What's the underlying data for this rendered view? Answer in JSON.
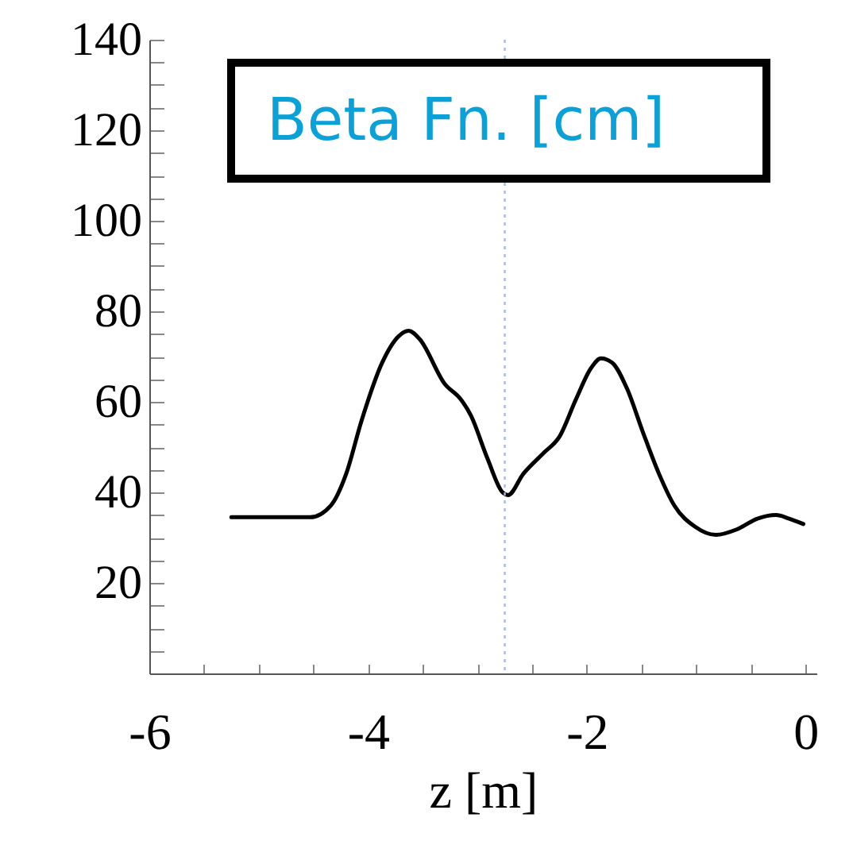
{
  "chart_data": {
    "type": "line",
    "title": "Beta Fn. [cm]",
    "xlabel": "z [m]",
    "x": [
      -5.25,
      -4.53,
      -4.34,
      -4.2,
      -4.06,
      -3.87,
      -3.72,
      -3.63,
      -3.53,
      -3.3,
      -3.15,
      -3.06,
      -2.91,
      -2.77,
      -2.72,
      -2.58,
      -2.39,
      -2.25,
      -2.1,
      -1.96,
      -1.87,
      -1.77,
      -1.63,
      -1.49,
      -1.34,
      -1.2,
      -1.01,
      -0.82,
      -0.63,
      -0.44,
      -0.27,
      -0.15,
      -0.02
    ],
    "series": [
      {
        "color": "#000000",
        "values": [
          34.5,
          34.5,
          37.1,
          44.1,
          55.8,
          68.7,
          74.5,
          75.7,
          73.9,
          64.0,
          60.5,
          57.0,
          47.6,
          40.0,
          39.4,
          44.1,
          48.8,
          52.3,
          60.5,
          67.5,
          69.6,
          68.7,
          62.8,
          53.5,
          44.1,
          37.1,
          32.4,
          30.6,
          31.8,
          34.2,
          35.0,
          34.2,
          33.0
        ]
      }
    ],
    "xlim": [
      -6,
      0.1
    ],
    "ylim": [
      0,
      140
    ],
    "xticks": [
      -6,
      {
        "value": -5.5,
        "label": null
      },
      {
        "value": -5,
        "label": null
      },
      {
        "value": -4.5,
        "label": null
      },
      -4,
      {
        "value": -3.5,
        "label": null
      },
      {
        "value": -3,
        "label": null
      },
      {
        "value": -2.5,
        "label": null
      },
      -2,
      {
        "value": -1.5,
        "label": null
      },
      {
        "value": -1,
        "label": null
      },
      {
        "value": -0.5,
        "label": null
      },
      0
    ],
    "yticks": [
      {
        "value": 5,
        "label": null
      },
      {
        "value": 10,
        "label": null
      },
      {
        "value": 15,
        "label": null
      },
      20,
      {
        "value": 25,
        "label": null
      },
      {
        "value": 30,
        "label": null
      },
      {
        "value": 35,
        "label": null
      },
      40,
      {
        "value": 45,
        "label": null
      },
      {
        "value": 50,
        "label": null
      },
      {
        "value": 55,
        "label": null
      },
      60,
      {
        "value": 65,
        "label": null
      },
      {
        "value": 70,
        "label": null
      },
      {
        "value": 75,
        "label": null
      },
      80,
      {
        "value": 85,
        "label": null
      },
      {
        "value": 90,
        "label": null
      },
      {
        "value": 95,
        "label": null
      },
      100,
      {
        "value": 105,
        "label": null
      },
      {
        "value": 110,
        "label": null
      },
      {
        "value": 115,
        "label": null
      },
      120,
      {
        "value": 125,
        "label": null
      },
      {
        "value": 130,
        "label": null
      },
      {
        "value": 135,
        "label": null
      },
      140
    ],
    "ref_lines": [
      {
        "axis": "x",
        "value": -2.75,
        "color": "#a8b8e8",
        "line_style": "dotted"
      }
    ]
  }
}
